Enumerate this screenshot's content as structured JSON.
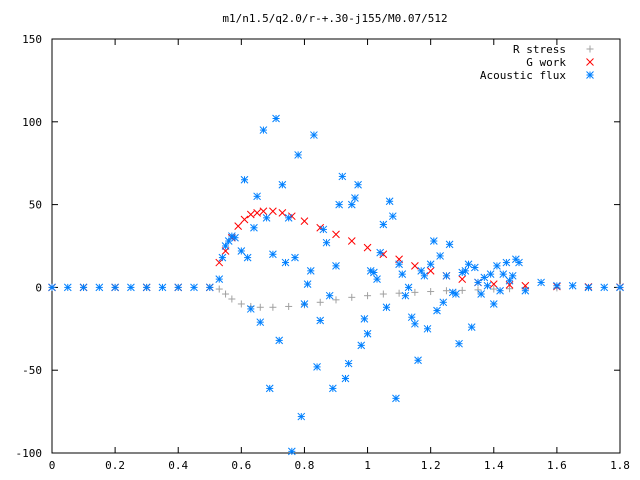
{
  "chart_data": {
    "type": "scatter",
    "title": "m1/n1.5/q2.0/r-+.30-j155/M0.07/512",
    "xlabel": "",
    "ylabel": "",
    "xlim": [
      0,
      1.8
    ],
    "ylim": [
      -100,
      150
    ],
    "x_ticks": [
      0,
      0.2,
      0.4,
      0.6,
      0.8,
      1,
      1.2,
      1.4,
      1.6,
      1.8
    ],
    "x_tick_labels": [
      "0",
      "0.2",
      "0.4",
      "0.6",
      "0.8",
      "1",
      "1.2",
      "1.4",
      "1.6",
      "1.8"
    ],
    "y_ticks": [
      -100,
      -50,
      0,
      50,
      100,
      150
    ],
    "y_tick_labels": [
      "-100",
      "-50",
      "0",
      "50",
      "100",
      "150"
    ],
    "grid": false,
    "legend_position": "top-right",
    "series": [
      {
        "name": "R stress",
        "color": "#a0a0a0",
        "marker": "plus",
        "x": [
          0.0,
          0.1,
          0.2,
          0.3,
          0.4,
          0.5,
          0.53,
          0.55,
          0.57,
          0.6,
          0.63,
          0.66,
          0.7,
          0.75,
          0.8,
          0.85,
          0.9,
          0.95,
          1.0,
          1.05,
          1.1,
          1.15,
          1.2,
          1.25,
          1.3,
          1.35,
          1.4,
          1.45,
          1.5,
          1.6,
          1.7,
          1.8
        ],
        "y": [
          0,
          0,
          0,
          0,
          0,
          0,
          -1,
          -4,
          -7,
          -10,
          -11.5,
          -12,
          -12,
          -11.5,
          -10.5,
          -9,
          -7.5,
          -6,
          -5,
          -4,
          -3.5,
          -3,
          -2.5,
          -2,
          -1.8,
          -1.5,
          -1,
          -0.8,
          -0.5,
          -0.3,
          -0.2,
          -0.1
        ]
      },
      {
        "name": "G work",
        "color": "#ff0000",
        "marker": "cross",
        "x": [
          0.0,
          0.1,
          0.2,
          0.3,
          0.4,
          0.5,
          0.53,
          0.55,
          0.57,
          0.59,
          0.61,
          0.63,
          0.65,
          0.67,
          0.7,
          0.73,
          0.76,
          0.8,
          0.85,
          0.9,
          0.95,
          1.0,
          1.05,
          1.1,
          1.15,
          1.2,
          1.25,
          1.3,
          1.35,
          1.4,
          1.45,
          1.5,
          1.6,
          1.7,
          1.8
        ],
        "y": [
          0,
          0,
          0,
          0,
          0,
          0,
          15,
          22,
          30,
          37,
          41,
          44,
          45,
          46,
          46,
          45,
          43,
          40,
          36,
          32,
          28,
          24,
          20,
          17,
          13,
          10,
          7,
          5,
          3,
          2,
          1.5,
          1,
          0.5,
          0.3,
          0.2
        ]
      },
      {
        "name": "Acoustic flux",
        "color": "#0080ff",
        "marker": "star",
        "x": [
          0.0,
          0.05,
          0.1,
          0.15,
          0.2,
          0.25,
          0.3,
          0.35,
          0.4,
          0.45,
          0.5,
          0.53,
          0.54,
          0.55,
          0.56,
          0.57,
          0.58,
          0.6,
          0.61,
          0.62,
          0.63,
          0.64,
          0.65,
          0.66,
          0.67,
          0.68,
          0.69,
          0.7,
          0.71,
          0.72,
          0.73,
          0.74,
          0.75,
          0.76,
          0.77,
          0.78,
          0.79,
          0.8,
          0.81,
          0.82,
          0.83,
          0.84,
          0.85,
          0.86,
          0.87,
          0.88,
          0.89,
          0.9,
          0.91,
          0.92,
          0.93,
          0.94,
          0.95,
          0.96,
          0.97,
          0.98,
          0.99,
          1.0,
          1.01,
          1.02,
          1.03,
          1.04,
          1.05,
          1.06,
          1.07,
          1.08,
          1.09,
          1.1,
          1.11,
          1.12,
          1.13,
          1.14,
          1.15,
          1.16,
          1.17,
          1.18,
          1.19,
          1.2,
          1.21,
          1.22,
          1.23,
          1.24,
          1.25,
          1.26,
          1.27,
          1.28,
          1.29,
          1.3,
          1.31,
          1.32,
          1.33,
          1.34,
          1.35,
          1.36,
          1.37,
          1.38,
          1.39,
          1.4,
          1.41,
          1.42,
          1.43,
          1.44,
          1.45,
          1.46,
          1.47,
          1.48,
          1.5,
          1.55,
          1.6,
          1.65,
          1.7,
          1.75,
          1.8
        ],
        "y": [
          0,
          0,
          0,
          0,
          0,
          0,
          0,
          0,
          0,
          0,
          0,
          5,
          18,
          25,
          28,
          31,
          30,
          22,
          65,
          18,
          -13,
          36,
          55,
          -21,
          95,
          42,
          -61,
          20,
          102,
          -32,
          62,
          15,
          42,
          -99,
          18,
          80,
          -78,
          -10,
          2,
          10,
          92,
          -48,
          -20,
          35,
          27,
          -5,
          -61,
          13,
          50,
          67,
          -55,
          -46,
          50,
          54,
          62,
          -35,
          -19,
          -28,
          10,
          9,
          5,
          21,
          38,
          -12,
          52,
          43,
          -67,
          14,
          8,
          -5,
          0,
          -18,
          -22,
          -44,
          10,
          7,
          -25,
          14,
          28,
          -14,
          19,
          -9,
          7,
          26,
          -3,
          -4,
          -34,
          9,
          10,
          14,
          -24,
          12,
          3,
          -4,
          6,
          1,
          8,
          -10,
          13,
          -2,
          8,
          15,
          4,
          7,
          17,
          15,
          -2,
          3,
          1,
          1,
          0,
          0,
          0
        ]
      }
    ]
  }
}
